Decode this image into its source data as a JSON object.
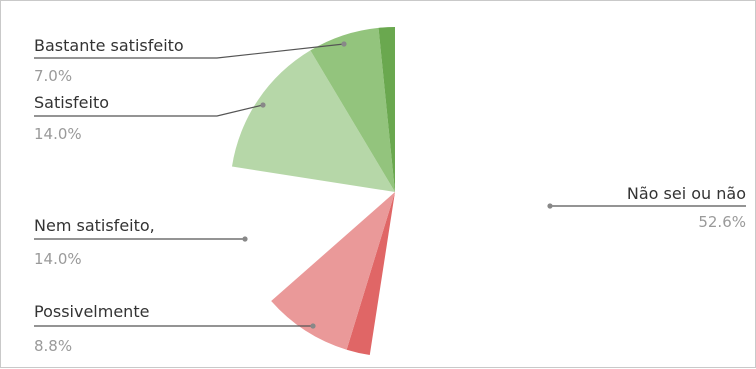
{
  "chart_data": {
    "type": "pie",
    "title": "",
    "legend": "none",
    "slices": [
      {
        "label": "Não sei ou não",
        "value": 52.6,
        "display": "52.6%",
        "color": "#ffffff"
      },
      {
        "label": "",
        "value": 2.3,
        "display": "",
        "color": "#e06666"
      },
      {
        "label": "Possivelmente",
        "value": 8.8,
        "display": "8.8%",
        "color": "#ea9999"
      },
      {
        "label": "Nem satisfeito,",
        "value": 14.0,
        "display": "14.0%",
        "color": "#ffffff"
      },
      {
        "label": "Satisfeito",
        "value": 14.0,
        "display": "14.0%",
        "color": "#b6d7a8"
      },
      {
        "label": "Bastante satisfeito",
        "value": 7.0,
        "display": "7.0%",
        "color": "#93c47d"
      },
      {
        "label": "",
        "value": 1.6,
        "display": "",
        "color": "#6aa84f"
      }
    ]
  }
}
